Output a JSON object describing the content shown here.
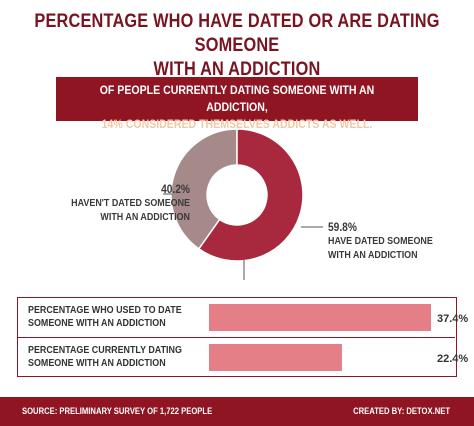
{
  "title_line1": "PERCENTAGE WHO HAVE DATED OR ARE DATING SOMEONE",
  "title_line2": "WITH AN ADDICTION",
  "banner": {
    "line1": "OF PEOPLE CURRENTLY DATING SOMEONE WITH AN ADDICTION,",
    "line2": "14% CONSIDERED THEMSELVES ADDICTS AS WELL."
  },
  "colors": {
    "accent": "#8f1522",
    "donut_dated": "#a8283d",
    "donut_not_dated": "#a58a89",
    "bar": "#e57f87"
  },
  "chart_data": [
    {
      "type": "pie",
      "variant": "donut",
      "slices": [
        {
          "label_line1": "HAVEN'T DATED SOMEONE",
          "label_line2": "WITH AN ADDICTION",
          "value": 40.2,
          "value_text": "40.2%"
        },
        {
          "label_line1": "HAVE DATED SOMEONE",
          "label_line2": "WITH AN ADDICTION",
          "value": 59.8,
          "value_text": "59.8%"
        }
      ]
    },
    {
      "type": "bar",
      "orientation": "horizontal",
      "categories": [
        {
          "line1": "PERCENTAGE WHO USED TO DATE",
          "line2": "SOMEONE WITH AN ADDICTION"
        },
        {
          "line1": "PERCENTAGE CURRENTLY DATING",
          "line2": "SOMEONE WITH AN ADDICTION"
        }
      ],
      "values": [
        37.4,
        22.4
      ],
      "value_labels": [
        "37.4%",
        "22.4%"
      ],
      "xlim": [
        0,
        37.4
      ]
    }
  ],
  "footer": {
    "source": "SOURCE: PRELIMINARY SURVEY OF 1,722 PEOPLE",
    "credit": "CREATED BY: DETOX.NET"
  }
}
